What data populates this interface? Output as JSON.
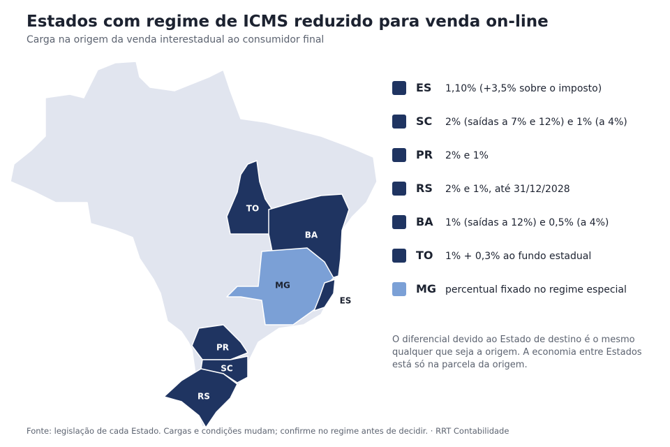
{
  "header": {
    "title": "Estados com regime de ICMS reduzido para venda on-line",
    "subtitle": "Carga na origem da venda interestadual ao consumidor final"
  },
  "legend": {
    "items": [
      {
        "code": "ES",
        "text": "1,10% (+3,5% sobre o imposto)",
        "color": "#1f3461"
      },
      {
        "code": "SC",
        "text": "2% (saídas a 7% e 12%) e 1% (a 4%)",
        "color": "#1f3461"
      },
      {
        "code": "PR",
        "text": "2% e 1%",
        "color": "#1f3461"
      },
      {
        "code": "RS",
        "text": "2% e 1%, até 31/12/2028",
        "color": "#1f3461"
      },
      {
        "code": "BA",
        "text": "1% (saídas a 12%) e 0,5% (a 4%)",
        "color": "#1f3461"
      },
      {
        "code": "TO",
        "text": "1% + 0,3% ao fundo estadual",
        "color": "#1f3461"
      },
      {
        "code": "MG",
        "text": "percentual fixado no regime especial",
        "color": "#7ba0d6"
      }
    ]
  },
  "note": [
    "O diferencial devido ao Estado de destino é o mesmo",
    "qualquer que seja a origem. A economia entre Estados",
    "está só na parcela da origem."
  ],
  "footer": "Fonte: legislação de cada Estado. Cargas e condições mudam; confirme no regime antes de decidir.  ·  RRT Contabilidade"
}
